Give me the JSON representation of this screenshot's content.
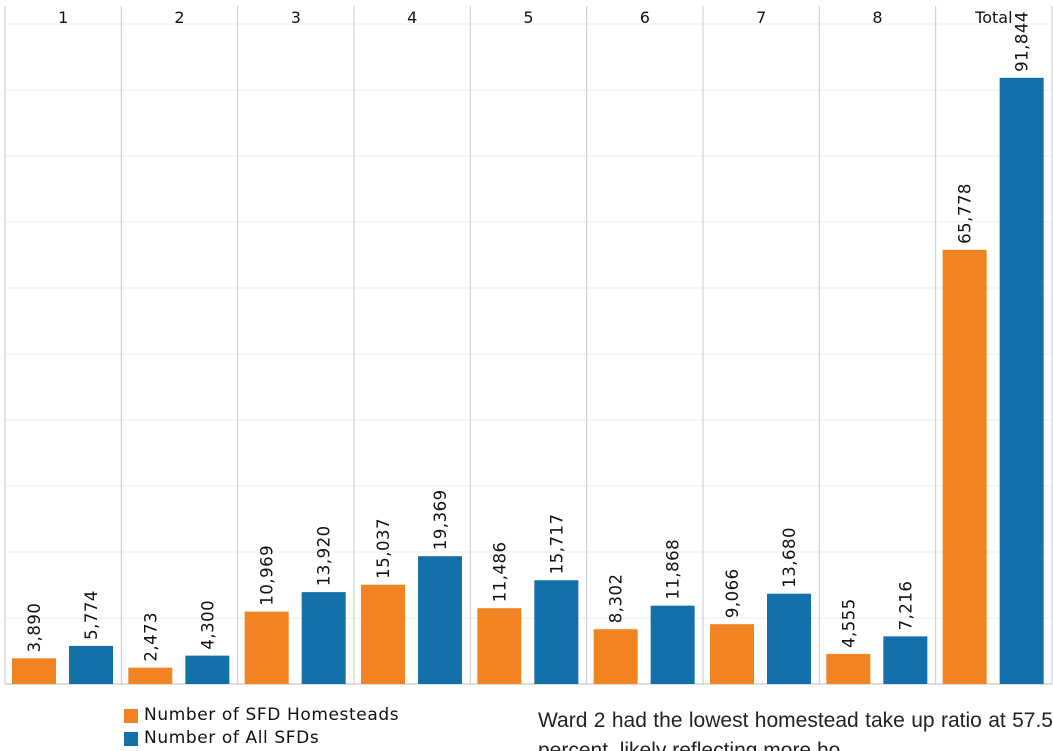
{
  "chart_data": {
    "type": "bar",
    "categories": [
      "1",
      "2",
      "3",
      "4",
      "5",
      "6",
      "7",
      "8",
      "Total"
    ],
    "series": [
      {
        "name": "Number of SFD Homesteads",
        "color": "#F28322",
        "values": [
          3890,
          2473,
          10969,
          15037,
          11486,
          8302,
          9066,
          4555,
          65778
        ],
        "labels": [
          "3,890",
          "2,473",
          "10,969",
          "15,037",
          "11,486",
          "8,302",
          "9,066",
          "4,555",
          "65,778"
        ]
      },
      {
        "name": "Number of All SFDs",
        "color": "#1470AA",
        "values": [
          5774,
          4300,
          13920,
          19369,
          15717,
          11868,
          13680,
          7216,
          91844
        ],
        "labels": [
          "5,774",
          "4,300",
          "13,920",
          "19,369",
          "15,717",
          "11,868",
          "13,680",
          "7,216",
          "91,844"
        ]
      }
    ],
    "ylim": [
      0,
      100000
    ],
    "grid": true,
    "legend_position": "bottom-left"
  },
  "legend": {
    "homesteads": "Number of SFD Homesteads",
    "all_sfds": "Number of All SFDs"
  },
  "body_text": "Ward 2 had the lowest homestead take up ratio at 57.5 percent, likely reflecting more ho"
}
